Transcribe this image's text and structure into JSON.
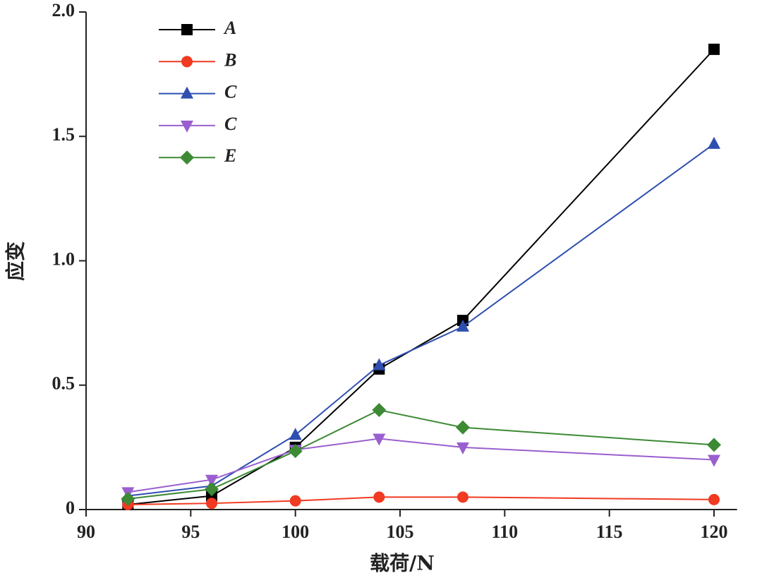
{
  "chart_data": {
    "type": "line",
    "x_label": "载荷/N",
    "y_label": "应变",
    "x": [
      92,
      96,
      100,
      104,
      108,
      120
    ],
    "series": [
      {
        "name": "A",
        "color": "#000000",
        "marker": "square",
        "values": [
          0.02,
          0.055,
          0.25,
          0.565,
          0.76,
          1.85
        ]
      },
      {
        "name": "B",
        "color": "#f03a21",
        "marker": "circle",
        "values": [
          0.02,
          0.025,
          0.035,
          0.05,
          0.05,
          0.04
        ]
      },
      {
        "name": "C",
        "color": "#2f4fb0",
        "marker": "triangle-up",
        "values": [
          0.055,
          0.095,
          0.3,
          0.58,
          0.735,
          1.47
        ]
      },
      {
        "name": "C",
        "color": "#9a5fcf",
        "marker": "triangle-down",
        "values": [
          0.07,
          0.12,
          0.24,
          0.285,
          0.25,
          0.2
        ]
      },
      {
        "name": "E",
        "color": "#3d8a35",
        "marker": "diamond",
        "values": [
          0.043,
          0.082,
          0.235,
          0.4,
          0.33,
          0.26
        ]
      }
    ],
    "xlim": [
      90,
      121.1
    ],
    "xticks": [
      90,
      95,
      100,
      105,
      110,
      115,
      120
    ],
    "ylim": [
      0,
      2
    ],
    "yticks": [
      0,
      0.5,
      {
        "value": 1,
        "label": "1.0"
      },
      1.5,
      {
        "value": 2,
        "label": "2.0"
      }
    ],
    "legend": "upper-left",
    "grid": false
  }
}
